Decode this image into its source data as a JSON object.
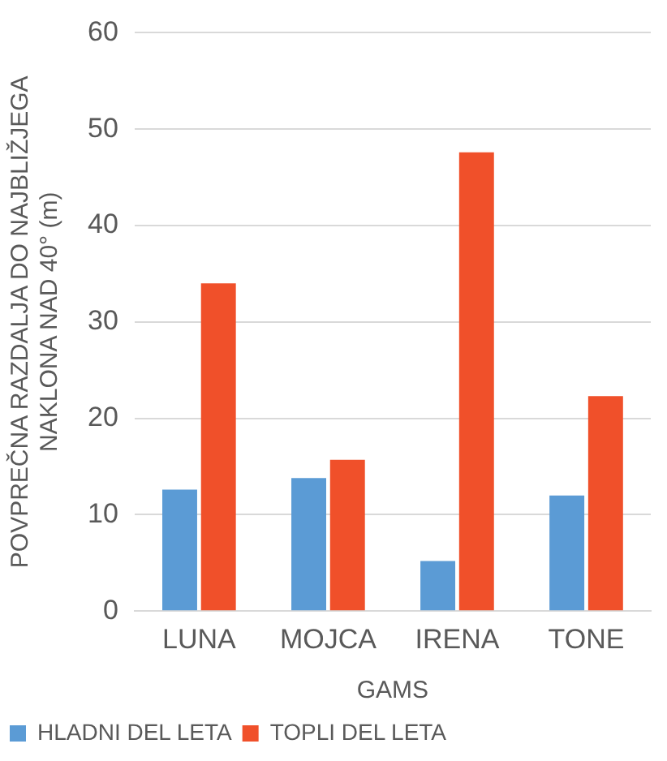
{
  "chart_data": {
    "type": "bar",
    "xlabel": "GAMS",
    "ylabel": "POVPREČNA RAZDALJA DO NAJBLIŽJEGA\nNAKLONA NAD 40° (m)",
    "categories": [
      "LUNA",
      "MOJCA",
      "IRENA",
      "TONE"
    ],
    "series": [
      {
        "name": "HLADNI DEL LETA",
        "color": "#5b9bd5",
        "values": [
          12.6,
          13.8,
          5.2,
          12.0
        ]
      },
      {
        "name": "TOPLI DEL LETA",
        "color": "#f0502a",
        "values": [
          34.0,
          15.7,
          47.6,
          22.3
        ]
      }
    ],
    "ylim": [
      0,
      60
    ],
    "yticks": [
      0,
      10,
      20,
      30,
      40,
      50,
      60
    ],
    "grid": "y",
    "legend": "bottom left"
  }
}
